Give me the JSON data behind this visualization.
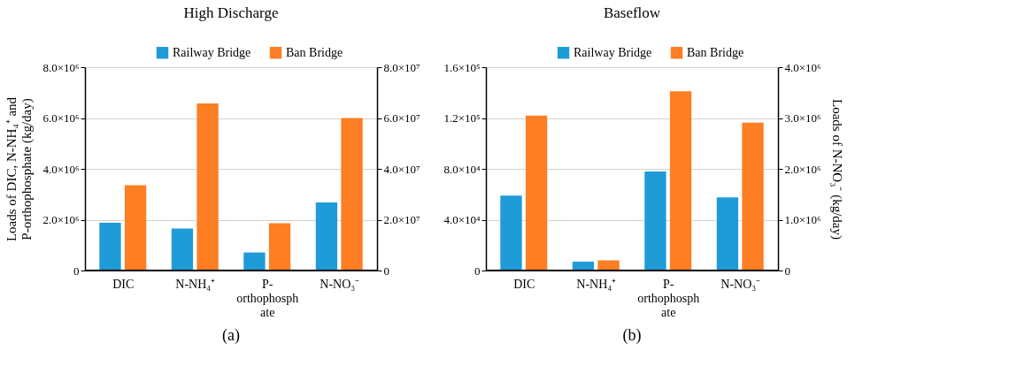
{
  "chart_data": [
    {
      "type": "bar",
      "title": "High Discharge",
      "ylabel": "Loads of DIC, N-NH₄⁺ and\nP-orthophosphate (kg/day)",
      "categories": [
        "DIC",
        "N-NH₄⁺",
        "P-\northophosph\nate",
        "N-NO₃⁻"
      ],
      "series": [
        {
          "name": "Railway Bridge",
          "color": "#1f9bd7",
          "values": [
            1880000,
            1650000,
            710000,
            null
          ]
        },
        {
          "name": "Ban Bridge",
          "color": "#fd7e23",
          "values": [
            3360000,
            6570000,
            1860000,
            null
          ]
        },
        {
          "color": "#1f9bd7",
          "axis": "y2",
          "values": [
            null,
            null,
            null,
            26800000
          ]
        },
        {
          "color": "#fd7e23",
          "axis": "y2",
          "values": [
            null,
            null,
            null,
            60000000
          ]
        }
      ],
      "ylim": [
        0,
        8000000
      ],
      "yticks": [
        0,
        {
          "value": 2000000,
          "label": "2.0×10⁶"
        },
        {
          "value": 4000000,
          "label": "4.0×10⁶"
        },
        {
          "value": 6000000,
          "label": "6.0×10⁶"
        },
        {
          "value": 8000000,
          "label": "8.0×10⁶"
        }
      ],
      "y2lim": [
        0,
        80000000
      ],
      "y2ticks": [
        0,
        {
          "value": 20000000,
          "label": "2.0×10⁷"
        },
        {
          "value": 40000000,
          "label": "4.0×10⁷"
        },
        {
          "value": 60000000,
          "label": "6.0×10⁷"
        },
        {
          "value": 80000000,
          "label": "8.0×10⁷"
        }
      ],
      "grid": "y",
      "legend": "top right",
      "annotations": [
        "(a)"
      ]
    },
    {
      "type": "bar",
      "title": "Baseflow",
      "y2label": "Loads of N-NO₃⁻ (kg/day)",
      "categories": [
        "DIC",
        "N-NH₄⁺",
        "P-\northophosph\nate",
        "N-NO₃⁻"
      ],
      "series": [
        {
          "name": "Railway Bridge",
          "color": "#1f9bd7",
          "values": [
            59000,
            7000,
            78000,
            null
          ]
        },
        {
          "name": "Ban Bridge",
          "color": "#fd7e23",
          "values": [
            122000,
            8000,
            141000,
            null
          ]
        },
        {
          "color": "#1f9bd7",
          "axis": "y2",
          "values": [
            null,
            null,
            null,
            1440000
          ]
        },
        {
          "color": "#fd7e23",
          "axis": "y2",
          "values": [
            null,
            null,
            null,
            2910000
          ]
        }
      ],
      "ylim": [
        0,
        160000
      ],
      "yticks": [
        0,
        {
          "value": 40000,
          "label": "4.0×10⁴"
        },
        {
          "value": 80000,
          "label": "8.0×10⁴"
        },
        {
          "value": 120000,
          "label": "1.2×10⁵"
        },
        {
          "value": 160000,
          "label": "1.6×10⁵"
        }
      ],
      "y2lim": [
        0,
        4000000
      ],
      "y2ticks": [
        0,
        {
          "value": 1000000,
          "label": "1.0×10⁶"
        },
        {
          "value": 2000000,
          "label": "2.0×10⁶"
        },
        {
          "value": 3000000,
          "label": "3.0×10⁶"
        },
        {
          "value": 4000000,
          "label": "4.0×10⁶"
        }
      ],
      "grid": "y",
      "legend": "top right",
      "annotations": [
        "(b)"
      ]
    }
  ]
}
